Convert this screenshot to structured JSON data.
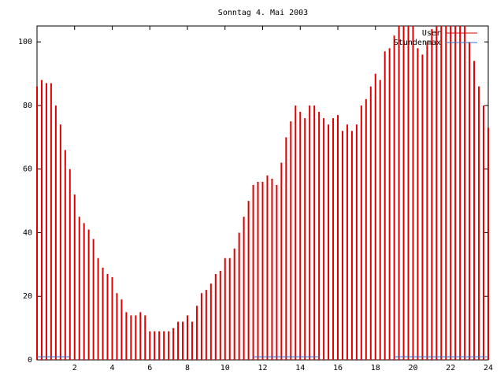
{
  "chart_data": {
    "type": "impulses",
    "title": "Sonntag 4. Mai 2003",
    "xlim": [
      0,
      24
    ],
    "xticks": [
      2,
      4,
      6,
      8,
      10,
      12,
      14,
      16,
      18,
      20,
      22,
      24
    ],
    "ylim": [
      0,
      105
    ],
    "yticks": [
      0,
      20,
      40,
      60,
      80,
      100
    ],
    "series": [
      {
        "name": "User",
        "color": "#e00000",
        "x": [
          0,
          0.25,
          0.5,
          0.75,
          1,
          1.25,
          1.5,
          1.75,
          2,
          2.25,
          2.5,
          2.75,
          3,
          3.25,
          3.5,
          3.75,
          4,
          4.25,
          4.5,
          4.75,
          5,
          5.25,
          5.5,
          5.75,
          6,
          6.25,
          6.5,
          6.75,
          7,
          7.25,
          7.5,
          7.75,
          8,
          8.25,
          8.5,
          8.75,
          9,
          9.25,
          9.5,
          9.75,
          10,
          10.25,
          10.5,
          10.75,
          11,
          11.25,
          11.5,
          11.75,
          12,
          12.25,
          12.5,
          12.75,
          13,
          13.25,
          13.5,
          13.75,
          14,
          14.25,
          14.5,
          14.75,
          15,
          15.25,
          15.5,
          15.75,
          16,
          16.25,
          16.5,
          16.75,
          17,
          17.25,
          17.5,
          17.75,
          18,
          18.25,
          18.5,
          18.75,
          19,
          19.25,
          19.5,
          19.75,
          20,
          20.25,
          20.5,
          20.75,
          21,
          21.25,
          21.5,
          21.75,
          22,
          22.25,
          22.5,
          22.75,
          23,
          23.25,
          23.5,
          23.75,
          24
        ],
        "values": [
          86,
          88,
          87,
          87,
          80,
          74,
          66,
          60,
          52,
          45,
          43,
          41,
          38,
          32,
          29,
          27,
          26,
          21,
          19,
          15,
          14,
          14,
          15,
          14,
          9,
          9,
          9,
          9,
          9,
          10,
          12,
          12,
          14,
          12,
          17,
          21,
          22,
          24,
          27,
          28,
          32,
          32,
          35,
          40,
          45,
          50,
          55,
          56,
          56,
          58,
          57,
          55,
          62,
          70,
          75,
          80,
          78,
          76,
          80,
          80,
          78,
          76,
          74,
          76,
          77,
          72,
          74,
          72,
          74,
          80,
          82,
          86,
          90,
          88,
          97,
          98,
          102,
          105,
          105,
          105,
          105,
          98,
          96,
          100,
          104,
          105,
          105,
          105,
          105,
          105,
          105,
          105,
          100,
          94,
          86,
          80,
          73
        ]
      },
      {
        "name": "Stundenmax",
        "color": "#3070d0",
        "x": [
          0,
          1.75,
          1.75,
          11.5,
          15,
          15,
          19,
          24
        ],
        "values": [
          1,
          1,
          null,
          1,
          1,
          null,
          1,
          1
        ]
      }
    ]
  }
}
